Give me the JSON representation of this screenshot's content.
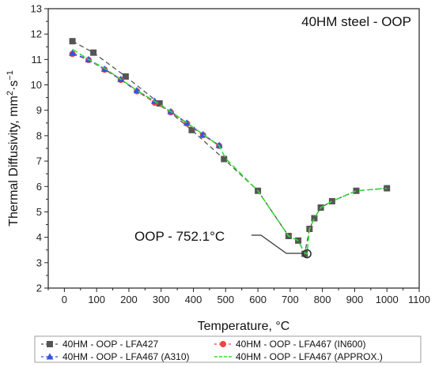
{
  "chart_data": {
    "type": "line",
    "title": "40HM steel - OOP",
    "xlabel": "Temperature, °C",
    "ylabel": "Thermal Diffusivity, mm²·s⁻¹",
    "ylabel_parts": [
      "Thermal Diffusivity, mm",
      "2",
      "·s",
      "−1"
    ],
    "xlim": [
      -50,
      1100
    ],
    "ylim": [
      2,
      13
    ],
    "xticks": [
      0,
      100,
      200,
      300,
      400,
      500,
      600,
      700,
      800,
      900,
      1000,
      1100
    ],
    "yticks": [
      2,
      3,
      4,
      5,
      6,
      7,
      8,
      9,
      10,
      11,
      12,
      13
    ],
    "grid": false,
    "legend_position": "bottom",
    "annotation": {
      "text": "OOP - 752.1°C",
      "x": 752.1,
      "y": 3.35
    },
    "series": [
      {
        "name": "40HM  - OOP - LFA427",
        "color": "#555555",
        "marker": "square",
        "dash": "6,4",
        "x": [
          25,
          90,
          190,
          295,
          395,
          495,
          600,
          695,
          725,
          745,
          760,
          775,
          795,
          830,
          905,
          1000
        ],
        "y": [
          11.72,
          11.27,
          10.33,
          9.27,
          8.22,
          7.08,
          5.83,
          4.05,
          3.87,
          3.35,
          4.33,
          4.75,
          5.17,
          5.42,
          5.83,
          5.93
        ]
      },
      {
        "name": "40HM  - OOP - LFA467 (IN600)",
        "color": "#ee4444",
        "marker": "circle",
        "dash": "6,4",
        "x": [
          25,
          75,
          125,
          175,
          225,
          280,
          330,
          380,
          430,
          480
        ],
        "y": [
          11.22,
          10.98,
          10.6,
          10.2,
          9.75,
          9.3,
          8.92,
          8.48,
          8.02,
          7.6
        ]
      },
      {
        "name": "40HM  - OOP - LFA467 (A310)",
        "color": "#3355dd",
        "marker": "triangle",
        "dash": "6,4",
        "x": [
          25,
          75,
          125,
          175,
          225,
          280,
          330,
          380,
          430,
          480
        ],
        "y": [
          11.25,
          11.0,
          10.62,
          10.22,
          9.78,
          9.36,
          8.95,
          8.5,
          8.05,
          7.62
        ]
      },
      {
        "name": "40HM  - OOP - LFA467 (APPROX.)",
        "color": "#33dd33",
        "marker": "none",
        "dash": "7,4",
        "x": [
          25,
          75,
          125,
          175,
          225,
          280,
          330,
          380,
          430,
          480,
          500,
          600,
          695,
          725,
          745,
          752.1,
          760,
          775,
          795,
          830,
          905,
          1000
        ],
        "y": [
          11.4,
          11.0,
          10.65,
          10.22,
          9.78,
          9.35,
          8.95,
          8.5,
          8.05,
          7.6,
          7.1,
          5.83,
          4.05,
          3.87,
          3.38,
          3.35,
          4.33,
          4.75,
          5.17,
          5.42,
          5.83,
          5.93
        ]
      }
    ]
  }
}
